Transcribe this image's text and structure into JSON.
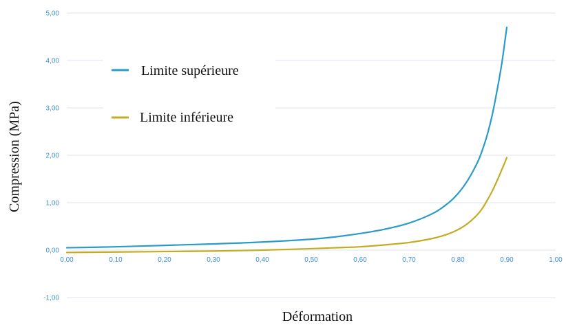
{
  "chart_data": {
    "type": "line",
    "title": "",
    "xlabel": "Déformation",
    "ylabel": "Compression (MPa)",
    "xlim": [
      0,
      1
    ],
    "ylim": [
      -1,
      5
    ],
    "xticks": [
      "0,00",
      "0,10",
      "0,20",
      "0,30",
      "0,40",
      "0,50",
      "0,60",
      "0,70",
      "0,80",
      "0,90",
      "1,00"
    ],
    "yticks": [
      "-1,00",
      "0,00",
      "1,00",
      "2,00",
      "3,00",
      "4,00",
      "5,00"
    ],
    "grid": true,
    "legend_position": "top-left",
    "series": [
      {
        "name": "Limite supérieure",
        "color": "#2a9bc8",
        "x": [
          0.0,
          0.1,
          0.2,
          0.3,
          0.4,
          0.5,
          0.55,
          0.6,
          0.65,
          0.7,
          0.75,
          0.78,
          0.8,
          0.82,
          0.84,
          0.85,
          0.86,
          0.87,
          0.88,
          0.89,
          0.9
        ],
        "y": [
          0.05,
          0.07,
          0.1,
          0.13,
          0.17,
          0.23,
          0.28,
          0.35,
          0.44,
          0.57,
          0.78,
          0.99,
          1.19,
          1.47,
          1.85,
          2.11,
          2.43,
          2.84,
          3.36,
          3.95,
          4.7
        ]
      },
      {
        "name": "Limite inférieure",
        "color": "#c3ac22",
        "x": [
          0.0,
          0.1,
          0.2,
          0.3,
          0.4,
          0.5,
          0.55,
          0.6,
          0.65,
          0.7,
          0.75,
          0.78,
          0.8,
          0.82,
          0.84,
          0.85,
          0.86,
          0.87,
          0.88,
          0.89,
          0.9
        ],
        "y": [
          -0.05,
          -0.04,
          -0.03,
          -0.02,
          0.0,
          0.03,
          0.05,
          0.07,
          0.11,
          0.16,
          0.25,
          0.34,
          0.43,
          0.56,
          0.75,
          0.88,
          1.05,
          1.24,
          1.46,
          1.7,
          1.95
        ]
      }
    ]
  }
}
